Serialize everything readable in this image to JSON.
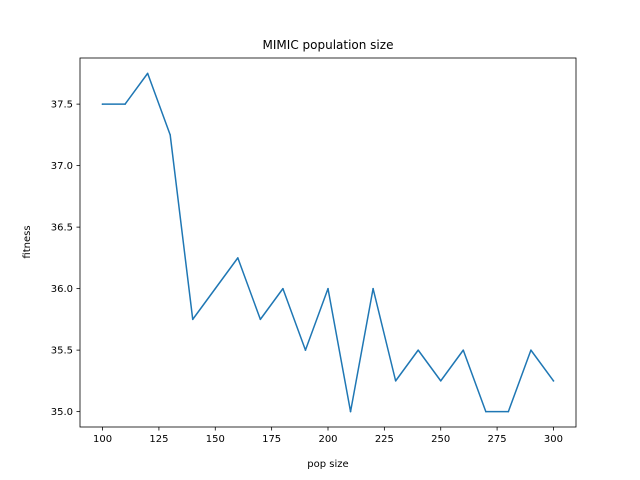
{
  "chart_data": {
    "type": "line",
    "title": "MIMIC population size",
    "xlabel": "pop size",
    "ylabel": "fitness",
    "xlim": [
      90,
      310
    ],
    "ylim": [
      34.875,
      37.875
    ],
    "xticks": [
      100,
      125,
      150,
      175,
      200,
      225,
      250,
      275,
      300
    ],
    "yticks": [
      35.0,
      35.5,
      36.0,
      36.5,
      37.0,
      37.5
    ],
    "ytick_labels": [
      "35.0",
      "35.5",
      "36.0",
      "36.5",
      "37.0",
      "37.5"
    ],
    "grid": false,
    "series": [
      {
        "color": "#1f77b4",
        "x": [
          100,
          110,
          120,
          130,
          140,
          150,
          160,
          170,
          180,
          190,
          200,
          210,
          220,
          230,
          240,
          250,
          260,
          270,
          280,
          290,
          300
        ],
        "y": [
          37.5,
          37.5,
          37.75,
          37.25,
          35.75,
          36.0,
          36.25,
          35.75,
          36.0,
          35.5,
          36.0,
          35.0,
          36.0,
          35.25,
          35.5,
          35.25,
          35.5,
          35.0,
          35.0,
          35.5,
          35.25
        ]
      }
    ]
  }
}
